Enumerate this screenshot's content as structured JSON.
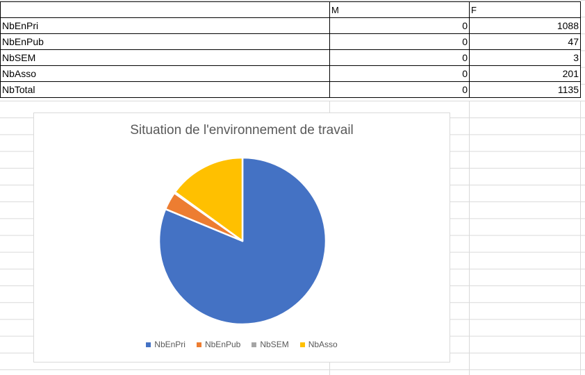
{
  "table": {
    "headers": [
      "",
      "M",
      "F"
    ],
    "rows": [
      {
        "label": "NbEnPri",
        "m": "0",
        "f": "1088"
      },
      {
        "label": "NbEnPub",
        "m": "0",
        "f": "47"
      },
      {
        "label": "NbSEM",
        "m": "0",
        "f": "3"
      },
      {
        "label": "NbAsso",
        "m": "0",
        "f": "201"
      },
      {
        "label": "NbTotal",
        "m": "0",
        "f": "1135"
      }
    ]
  },
  "chart_data": {
    "type": "pie",
    "title": "Situation de l'environnement de travail",
    "categories": [
      "NbEnPri",
      "NbEnPub",
      "NbSEM",
      "NbAsso"
    ],
    "values": [
      1088,
      47,
      3,
      201
    ],
    "colors": [
      "#4472c4",
      "#ed7d31",
      "#a5a5a5",
      "#ffc000"
    ],
    "legend": "bottom"
  }
}
